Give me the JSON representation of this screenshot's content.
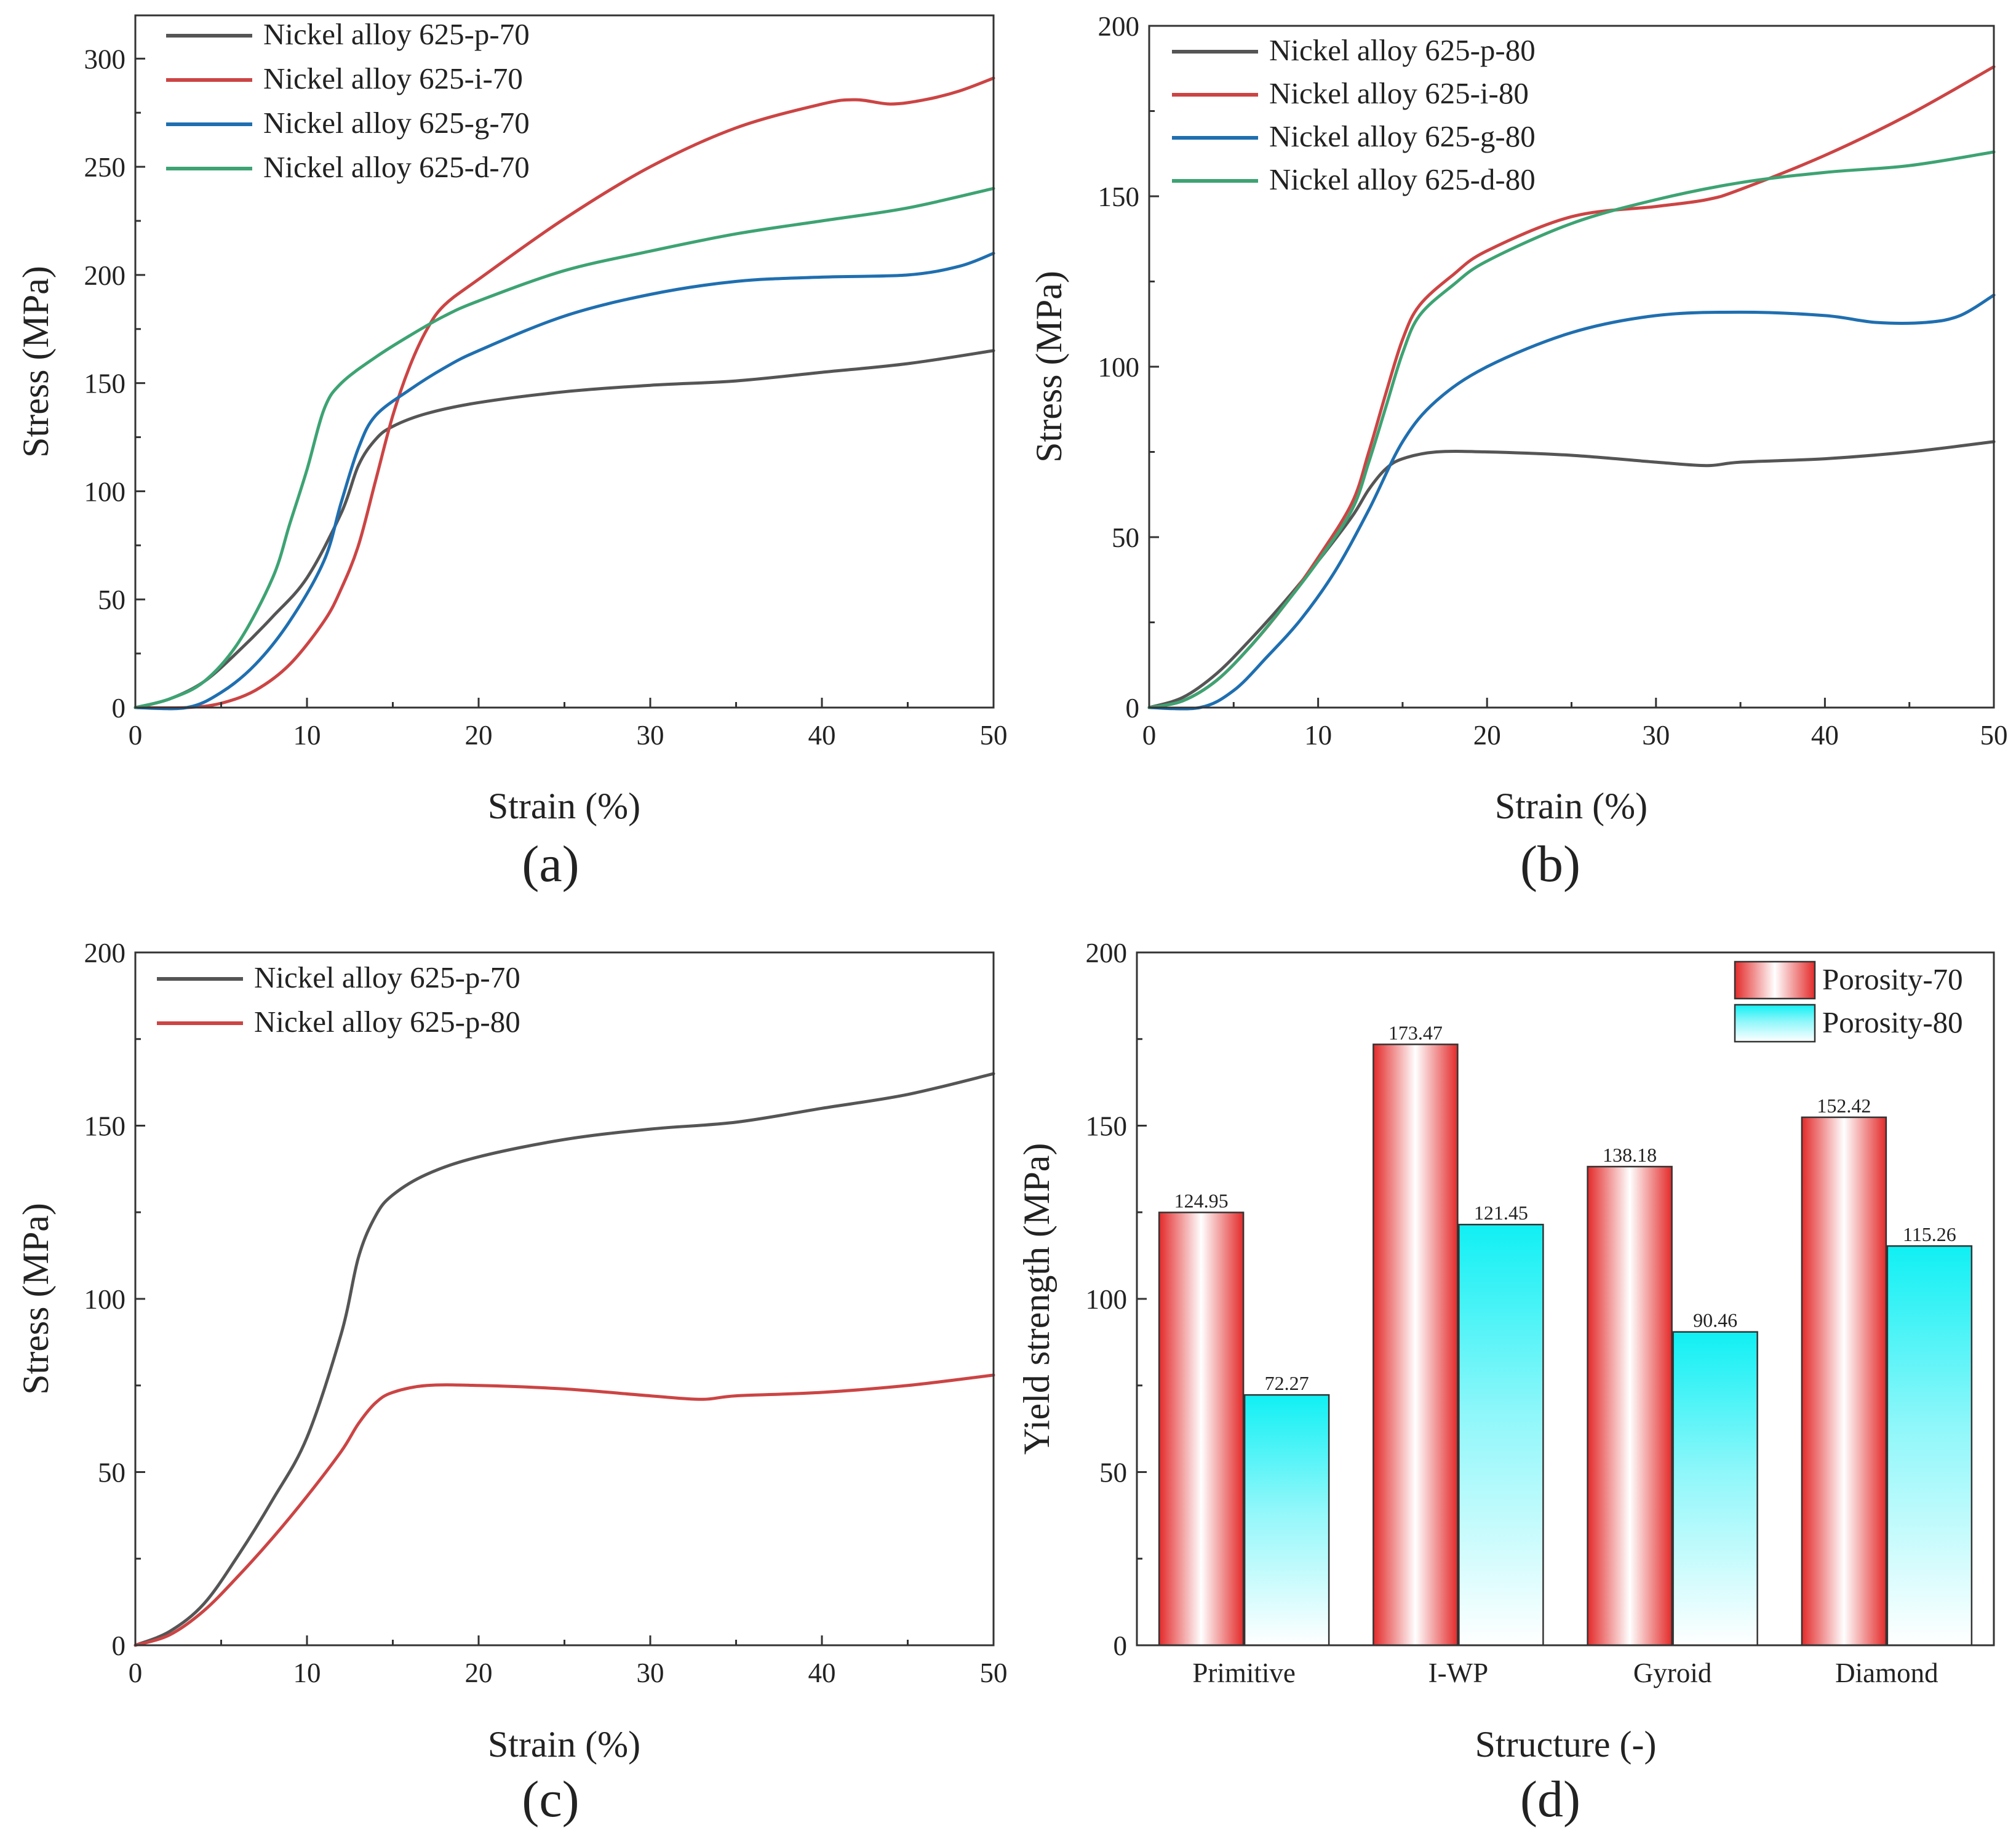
{
  "chart_data": [
    {
      "id": "a",
      "type": "line",
      "panel_label": "(a)",
      "xlabel": "Strain (%)",
      "ylabel": "Stress (MPa)",
      "xlim": [
        0,
        50
      ],
      "ylim": [
        0,
        320
      ],
      "xticks": [
        0,
        10,
        20,
        30,
        40,
        50
      ],
      "yticks": [
        0,
        50,
        100,
        150,
        200,
        250,
        300
      ],
      "legend_position": "top-left",
      "series": [
        {
          "name": "Nickel alloy 625-p-70",
          "color": "#555555",
          "points": [
            [
              0,
              0
            ],
            [
              2,
              4
            ],
            [
              4,
              12
            ],
            [
              6,
              26
            ],
            [
              8,
              42
            ],
            [
              10,
              60
            ],
            [
              12,
              90
            ],
            [
              13,
              112
            ],
            [
              14,
              124
            ],
            [
              15,
              130
            ],
            [
              17,
              136
            ],
            [
              20,
              141
            ],
            [
              25,
              146
            ],
            [
              30,
              149
            ],
            [
              35,
              151
            ],
            [
              40,
              155
            ],
            [
              45,
              159
            ],
            [
              50,
              165
            ]
          ]
        },
        {
          "name": "Nickel alloy 625-i-70",
          "color": "#cc4444",
          "points": [
            [
              0,
              0
            ],
            [
              3,
              0
            ],
            [
              5,
              2
            ],
            [
              7,
              8
            ],
            [
              9,
              20
            ],
            [
              11,
              40
            ],
            [
              12,
              55
            ],
            [
              13,
              75
            ],
            [
              14,
              105
            ],
            [
              15,
              135
            ],
            [
              16,
              158
            ],
            [
              17,
              175
            ],
            [
              18,
              186
            ],
            [
              20,
              198
            ],
            [
              25,
              226
            ],
            [
              30,
              250
            ],
            [
              35,
              268
            ],
            [
              40,
              279
            ],
            [
              42,
              281
            ],
            [
              44,
              279
            ],
            [
              46,
              281
            ],
            [
              48,
              285
            ],
            [
              50,
              291
            ]
          ]
        },
        {
          "name": "Nickel alloy 625-g-70",
          "color": "#1f6fb0",
          "points": [
            [
              0,
              0
            ],
            [
              3,
              0
            ],
            [
              5,
              7
            ],
            [
              7,
              20
            ],
            [
              9,
              40
            ],
            [
              11,
              68
            ],
            [
              12,
              95
            ],
            [
              13,
              120
            ],
            [
              14,
              135
            ],
            [
              16,
              147
            ],
            [
              18,
              157
            ],
            [
              20,
              165
            ],
            [
              25,
              181
            ],
            [
              30,
              191
            ],
            [
              35,
              197
            ],
            [
              40,
              199
            ],
            [
              45,
              200
            ],
            [
              48,
              204
            ],
            [
              50,
              210
            ]
          ]
        },
        {
          "name": "Nickel alloy 625-d-70",
          "color": "#3da373",
          "points": [
            [
              0,
              0
            ],
            [
              2,
              4
            ],
            [
              4,
              12
            ],
            [
              6,
              30
            ],
            [
              8,
              60
            ],
            [
              9,
              85
            ],
            [
              10,
              110
            ],
            [
              11,
              138
            ],
            [
              12,
              150
            ],
            [
              14,
              162
            ],
            [
              16,
              172
            ],
            [
              18,
              181
            ],
            [
              20,
              188
            ],
            [
              25,
              202
            ],
            [
              30,
              211
            ],
            [
              35,
              219
            ],
            [
              40,
              225
            ],
            [
              45,
              231
            ],
            [
              50,
              240
            ]
          ]
        }
      ]
    },
    {
      "id": "b",
      "type": "line",
      "panel_label": "(b)",
      "xlabel": "Strain (%)",
      "ylabel": "Stress (MPa)",
      "xlim": [
        0,
        50
      ],
      "ylim": [
        0,
        200
      ],
      "xticks": [
        0,
        10,
        20,
        30,
        40,
        50
      ],
      "yticks": [
        0,
        50,
        100,
        150,
        200
      ],
      "legend_position": "top-left",
      "series": [
        {
          "name": "Nickel alloy 625-p-80",
          "color": "#555555",
          "points": [
            [
              0,
              0
            ],
            [
              2,
              3
            ],
            [
              4,
              10
            ],
            [
              6,
              20
            ],
            [
              8,
              31
            ],
            [
              10,
              43
            ],
            [
              12,
              56
            ],
            [
              13,
              64
            ],
            [
              14,
              70
            ],
            [
              15,
              73
            ],
            [
              17,
              75
            ],
            [
              20,
              75
            ],
            [
              25,
              74
            ],
            [
              30,
              72
            ],
            [
              33,
              71
            ],
            [
              35,
              72
            ],
            [
              40,
              73
            ],
            [
              45,
              75
            ],
            [
              50,
              78
            ]
          ]
        },
        {
          "name": "Nickel alloy 625-i-80",
          "color": "#cc4444",
          "points": [
            [
              0,
              0
            ],
            [
              2,
              2
            ],
            [
              4,
              8
            ],
            [
              6,
              18
            ],
            [
              8,
              30
            ],
            [
              10,
              44
            ],
            [
              12,
              60
            ],
            [
              13,
              75
            ],
            [
              14,
              92
            ],
            [
              15,
              108
            ],
            [
              16,
              118
            ],
            [
              18,
              127
            ],
            [
              20,
              134
            ],
            [
              25,
              144
            ],
            [
              30,
              147
            ],
            [
              33,
              149
            ],
            [
              35,
              152
            ],
            [
              40,
              162
            ],
            [
              45,
              174
            ],
            [
              50,
              188
            ]
          ]
        },
        {
          "name": "Nickel alloy 625-g-80",
          "color": "#1f6fb0",
          "points": [
            [
              0,
              0
            ],
            [
              3,
              0
            ],
            [
              5,
              5
            ],
            [
              7,
              15
            ],
            [
              9,
              26
            ],
            [
              11,
              40
            ],
            [
              13,
              58
            ],
            [
              15,
              78
            ],
            [
              17,
              90
            ],
            [
              20,
              100
            ],
            [
              25,
              110
            ],
            [
              30,
              115
            ],
            [
              35,
              116
            ],
            [
              40,
              115
            ],
            [
              43,
              113
            ],
            [
              46,
              113
            ],
            [
              48,
              115
            ],
            [
              50,
              121
            ]
          ]
        },
        {
          "name": "Nickel alloy 625-d-80",
          "color": "#3da373",
          "points": [
            [
              0,
              0
            ],
            [
              2,
              2
            ],
            [
              4,
              8
            ],
            [
              6,
              18
            ],
            [
              8,
              30
            ],
            [
              10,
              43
            ],
            [
              12,
              58
            ],
            [
              13,
              72
            ],
            [
              14,
              88
            ],
            [
              15,
              104
            ],
            [
              16,
              115
            ],
            [
              18,
              124
            ],
            [
              20,
              131
            ],
            [
              25,
              142
            ],
            [
              30,
              149
            ],
            [
              35,
              154
            ],
            [
              40,
              157
            ],
            [
              45,
              159
            ],
            [
              50,
              163
            ]
          ]
        }
      ]
    },
    {
      "id": "c",
      "type": "line",
      "panel_label": "(c)",
      "xlabel": "Strain (%)",
      "ylabel": "Stress (MPa)",
      "xlim": [
        0,
        50
      ],
      "ylim": [
        0,
        200
      ],
      "xticks": [
        0,
        10,
        20,
        30,
        40,
        50
      ],
      "yticks": [
        0,
        50,
        100,
        150,
        200
      ],
      "legend_position": "top-left",
      "series": [
        {
          "name": "Nickel alloy 625-p-70",
          "color": "#555555",
          "points": [
            [
              0,
              0
            ],
            [
              2,
              4
            ],
            [
              4,
              12
            ],
            [
              6,
              26
            ],
            [
              8,
              42
            ],
            [
              10,
              60
            ],
            [
              12,
              90
            ],
            [
              13,
              112
            ],
            [
              14,
              124
            ],
            [
              15,
              130
            ],
            [
              17,
              136
            ],
            [
              20,
              141
            ],
            [
              25,
              146
            ],
            [
              30,
              149
            ],
            [
              35,
              151
            ],
            [
              40,
              155
            ],
            [
              45,
              159
            ],
            [
              50,
              165
            ]
          ]
        },
        {
          "name": "Nickel alloy 625-p-80",
          "color": "#cc4444",
          "points": [
            [
              0,
              0
            ],
            [
              2,
              3
            ],
            [
              4,
              10
            ],
            [
              6,
              20
            ],
            [
              8,
              31
            ],
            [
              10,
              43
            ],
            [
              12,
              56
            ],
            [
              13,
              64
            ],
            [
              14,
              70
            ],
            [
              15,
              73
            ],
            [
              17,
              75
            ],
            [
              20,
              75
            ],
            [
              25,
              74
            ],
            [
              30,
              72
            ],
            [
              33,
              71
            ],
            [
              35,
              72
            ],
            [
              40,
              73
            ],
            [
              45,
              75
            ],
            [
              50,
              78
            ]
          ]
        }
      ]
    },
    {
      "id": "d",
      "type": "bar",
      "panel_label": "(d)",
      "xlabel": "Structure (-)",
      "ylabel": "Yield strength (MPa)",
      "ylim": [
        0,
        200
      ],
      "yticks": [
        0,
        50,
        100,
        150,
        200
      ],
      "legend_position": "top-right",
      "categories": [
        "Primitive",
        "I-WP",
        "Gyroid",
        "Diamond"
      ],
      "series": [
        {
          "name": "Porosity-70",
          "color": "#ee2b2b",
          "values": [
            124.95,
            173.47,
            138.18,
            152.42
          ],
          "labels": [
            "124.95",
            "173.47",
            "138.18",
            "152.42"
          ]
        },
        {
          "name": "Porosity-80",
          "color": "#13f2f4",
          "values": [
            72.27,
            121.45,
            90.46,
            115.26
          ],
          "labels": [
            "72.27",
            "121.45",
            "90.46",
            "115.26"
          ]
        }
      ]
    }
  ]
}
